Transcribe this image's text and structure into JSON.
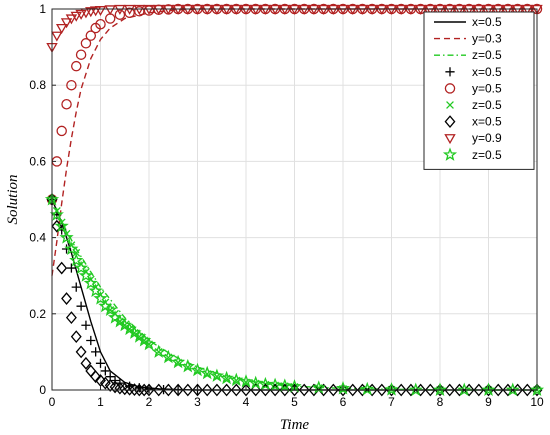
{
  "chart_data": {
    "type": "line",
    "title": "",
    "xlabel": "Time",
    "ylabel": "Solution",
    "xlim": [
      0,
      10
    ],
    "ylim": [
      0,
      1
    ],
    "xticks": [
      "0",
      "1",
      "2",
      "3",
      "4",
      "5",
      "6",
      "7",
      "8",
      "9",
      "10"
    ],
    "yticks": [
      "0",
      "0.2",
      "0.4",
      "0.6",
      "0.8",
      "1"
    ],
    "grid": true,
    "legend_position": "top-right",
    "series": [
      {
        "name": "x=0.5",
        "style": "solid line",
        "color": "#000000",
        "x": [
          0,
          0.2,
          0.4,
          0.6,
          0.8,
          1.0,
          1.2,
          1.5,
          1.8,
          2.2,
          2.6,
          3,
          4,
          5,
          6,
          7,
          8,
          9,
          10
        ],
        "y": [
          0.5,
          0.44,
          0.36,
          0.27,
          0.18,
          0.1,
          0.05,
          0.02,
          0.008,
          0.003,
          0.001,
          0,
          0,
          0,
          0,
          0,
          0,
          0,
          0
        ]
      },
      {
        "name": "y=0.3",
        "style": "dashed line",
        "color": "#b22222",
        "x": [
          0,
          0.1,
          0.2,
          0.3,
          0.4,
          0.5,
          0.6,
          0.8,
          1.0,
          1.2,
          1.5,
          2,
          2.5,
          3,
          4,
          5,
          6,
          7,
          8,
          9,
          10
        ],
        "y": [
          0.3,
          0.39,
          0.49,
          0.58,
          0.66,
          0.73,
          0.79,
          0.87,
          0.92,
          0.95,
          0.975,
          0.99,
          0.997,
          1,
          1,
          1,
          1,
          1,
          1,
          1,
          1
        ]
      },
      {
        "name": "z=0.5",
        "style": "dash-dot line",
        "color": "#22c922",
        "x": [
          0,
          0.25,
          0.5,
          0.75,
          1.0,
          1.5,
          2,
          2.5,
          3,
          3.5,
          4,
          4.5,
          5,
          6,
          7,
          8,
          9,
          10
        ],
        "y": [
          0.5,
          0.43,
          0.37,
          0.32,
          0.27,
          0.19,
          0.13,
          0.09,
          0.06,
          0.04,
          0.025,
          0.015,
          0.01,
          0.004,
          0.002,
          0,
          0,
          0
        ]
      },
      {
        "name": "x=0.5",
        "style": "plus markers",
        "color": "#000000",
        "x": [
          0,
          0.1,
          0.2,
          0.3,
          0.4,
          0.5,
          0.6,
          0.7,
          0.8,
          0.9,
          1.0,
          1.1,
          1.2,
          1.3,
          1.4,
          1.6,
          1.8,
          2.0,
          2.3,
          2.6,
          3.0
        ],
        "y": [
          0.5,
          0.46,
          0.42,
          0.37,
          0.32,
          0.27,
          0.22,
          0.17,
          0.13,
          0.1,
          0.07,
          0.05,
          0.035,
          0.025,
          0.018,
          0.01,
          0.006,
          0.003,
          0.001,
          0,
          0
        ]
      },
      {
        "name": "y=0.5",
        "style": "circle markers",
        "color": "#b22222",
        "x": [
          0,
          0.1,
          0.2,
          0.3,
          0.4,
          0.5,
          0.6,
          0.7,
          0.8,
          0.9,
          1.0,
          1.2,
          1.4,
          1.6,
          1.8,
          2.0,
          2.2,
          2.4,
          2.6,
          2.8,
          3.0,
          3.2,
          3.4,
          3.6,
          3.8,
          4.0,
          4.2,
          4.4,
          4.6,
          4.8,
          5.0,
          5.2,
          5.4,
          5.6,
          5.8,
          6.0,
          6.2,
          6.4,
          6.6,
          6.8,
          7.0,
          7.2,
          7.4,
          7.6,
          7.8,
          8.0,
          8.2,
          8.4,
          8.6,
          8.8,
          9.0,
          9.2,
          9.4,
          9.6,
          9.8,
          10.0
        ],
        "y": [
          0.5,
          0.6,
          0.68,
          0.75,
          0.8,
          0.85,
          0.88,
          0.91,
          0.93,
          0.95,
          0.96,
          0.975,
          0.985,
          0.99,
          0.994,
          0.996,
          0.998,
          0.999,
          1,
          1,
          1,
          1,
          1,
          1,
          1,
          1,
          1,
          1,
          1,
          1,
          1,
          1,
          1,
          1,
          1,
          1,
          1,
          1,
          1,
          1,
          1,
          1,
          1,
          1,
          1,
          1,
          1,
          1,
          1,
          1,
          1,
          1,
          1,
          1,
          1,
          1
        ]
      },
      {
        "name": "z=0.5",
        "style": "x markers",
        "color": "#22c922",
        "x": [
          0,
          0.1,
          0.2,
          0.3,
          0.4,
          0.5,
          0.6,
          0.7,
          0.8,
          0.9,
          1.0,
          1.1,
          1.2,
          1.3,
          1.4,
          1.5,
          1.6,
          1.7,
          1.8,
          1.9,
          2.0,
          2.2,
          2.4,
          2.6,
          2.8,
          3.0,
          3.2,
          3.4,
          3.6,
          3.8,
          4.0,
          4.2,
          4.4,
          4.6,
          4.8,
          5.0,
          5.5,
          6.0,
          6.5,
          7.0,
          7.5,
          8.0,
          8.5,
          9.0,
          9.5,
          10.0
        ],
        "y": [
          0.5,
          0.47,
          0.44,
          0.41,
          0.38,
          0.36,
          0.33,
          0.31,
          0.29,
          0.27,
          0.25,
          0.23,
          0.21,
          0.2,
          0.18,
          0.17,
          0.16,
          0.15,
          0.14,
          0.13,
          0.12,
          0.1,
          0.085,
          0.072,
          0.06,
          0.05,
          0.042,
          0.035,
          0.03,
          0.025,
          0.02,
          0.017,
          0.014,
          0.012,
          0.01,
          0.008,
          0.005,
          0.003,
          0.002,
          0.001,
          0,
          0,
          0,
          0,
          0,
          0
        ]
      },
      {
        "name": "x=0.5",
        "style": "diamond markers",
        "color": "#000000",
        "x": [
          0,
          0.1,
          0.2,
          0.3,
          0.4,
          0.5,
          0.6,
          0.7,
          0.8,
          0.9,
          1.0,
          1.1,
          1.2,
          1.3,
          1.4,
          1.5,
          1.6,
          1.7,
          1.8,
          1.9,
          2.0,
          2.2,
          2.4,
          2.6,
          2.8,
          3.0,
          3.2,
          3.4,
          3.6,
          3.8,
          4.0,
          4.2,
          4.4,
          4.6,
          4.8,
          5.0,
          5.2,
          5.4,
          5.6,
          5.8,
          6.0,
          6.2,
          6.4,
          6.6,
          6.8,
          7.0,
          7.2,
          7.4,
          7.6,
          7.8,
          8.0,
          8.2,
          8.4,
          8.6,
          8.8,
          9.0,
          9.2,
          9.4,
          9.6,
          9.8,
          10.0
        ],
        "y": [
          0.5,
          0.43,
          0.32,
          0.24,
          0.19,
          0.14,
          0.1,
          0.07,
          0.05,
          0.035,
          0.025,
          0.018,
          0.012,
          0.008,
          0.005,
          0.003,
          0.002,
          0.001,
          0,
          0,
          0,
          0,
          0,
          0,
          0,
          0,
          0,
          0,
          0,
          0,
          0,
          0,
          0,
          0,
          0,
          0,
          0,
          0,
          0,
          0,
          0,
          0,
          0,
          0,
          0,
          0,
          0,
          0,
          0,
          0,
          0,
          0,
          0,
          0,
          0,
          0,
          0,
          0,
          0,
          0,
          0
        ]
      },
      {
        "name": "y=0.9",
        "style": "down-triangle markers",
        "color": "#b22222",
        "x": [
          0,
          0.1,
          0.2,
          0.3,
          0.4,
          0.5,
          0.6,
          0.7,
          0.8,
          0.9,
          1.0,
          1.2,
          1.4,
          1.6,
          1.8,
          2.0,
          2.2,
          2.4,
          2.6,
          2.8,
          3.0,
          3.2,
          3.4,
          3.6,
          3.8,
          4.0,
          4.2,
          4.4,
          4.6,
          4.8,
          5.0,
          5.2,
          5.4,
          5.6,
          5.8,
          6.0,
          6.2,
          6.4,
          6.6,
          6.8,
          7.0,
          7.2,
          7.4,
          7.6,
          7.8,
          8.0,
          8.2,
          8.4,
          8.6,
          8.8,
          9.0,
          9.2,
          9.4,
          9.6,
          9.8,
          10.0
        ],
        "y": [
          0.9,
          0.93,
          0.95,
          0.965,
          0.975,
          0.982,
          0.987,
          0.991,
          0.994,
          0.996,
          0.997,
          0.999,
          1,
          1,
          1,
          1,
          1,
          1,
          1,
          1,
          1,
          1,
          1,
          1,
          1,
          1,
          1,
          1,
          1,
          1,
          1,
          1,
          1,
          1,
          1,
          1,
          1,
          1,
          1,
          1,
          1,
          1,
          1,
          1,
          1,
          1,
          1,
          1,
          1,
          1,
          1,
          1,
          1,
          1,
          1,
          1
        ]
      },
      {
        "name": "z=0.5",
        "style": "star markers",
        "color": "#22c922",
        "x": [
          0,
          0.1,
          0.2,
          0.3,
          0.4,
          0.5,
          0.6,
          0.7,
          0.8,
          0.9,
          1.0,
          1.1,
          1.2,
          1.3,
          1.4,
          1.5,
          1.6,
          1.7,
          1.8,
          1.9,
          2.0,
          2.2,
          2.4,
          2.6,
          2.8,
          3.0,
          3.2,
          3.4,
          3.6,
          3.8,
          4.0,
          4.2,
          4.4,
          4.6,
          4.8,
          5.0,
          5.5,
          6.0,
          6.5,
          7.0,
          7.5,
          8.0,
          8.5,
          9.0,
          9.5,
          10.0
        ],
        "y": [
          0.5,
          0.46,
          0.43,
          0.4,
          0.37,
          0.34,
          0.32,
          0.3,
          0.28,
          0.26,
          0.24,
          0.22,
          0.21,
          0.19,
          0.18,
          0.17,
          0.16,
          0.15,
          0.14,
          0.13,
          0.12,
          0.1,
          0.086,
          0.073,
          0.062,
          0.052,
          0.044,
          0.037,
          0.031,
          0.026,
          0.022,
          0.018,
          0.015,
          0.013,
          0.011,
          0.009,
          0.006,
          0.004,
          0.002,
          0.001,
          0,
          0,
          0,
          0,
          0,
          0
        ]
      }
    ]
  }
}
